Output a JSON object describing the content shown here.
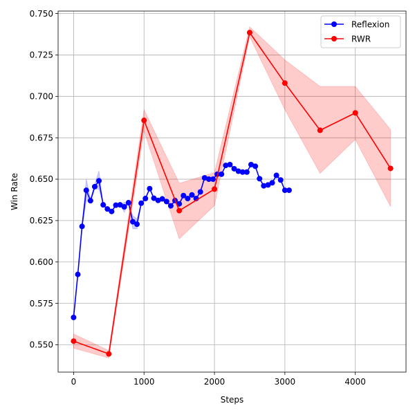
{
  "chart_data": {
    "type": "line",
    "title": "",
    "xlabel": "Steps",
    "ylabel": "Win Rate",
    "xlim": [
      -220,
      4720
    ],
    "ylim": [
      0.5335,
      0.7515
    ],
    "xticks": [
      0,
      1000,
      2000,
      3000,
      4000
    ],
    "xtick_labels": [
      "0",
      "1000",
      "2000",
      "3000",
      "4000"
    ],
    "yticks": [
      0.55,
      0.575,
      0.6,
      0.625,
      0.65,
      0.675,
      0.7,
      0.725,
      0.75
    ],
    "ytick_labels": [
      "0.550",
      "0.575",
      "0.600",
      "0.625",
      "0.650",
      "0.675",
      "0.700",
      "0.725",
      "0.750"
    ],
    "grid": true,
    "legend_position": "top-right",
    "series": [
      {
        "name": "Reflexion",
        "color": "#0000ff",
        "x": [
          0,
          60,
          120,
          180,
          240,
          300,
          360,
          420,
          480,
          540,
          600,
          660,
          720,
          780,
          840,
          900,
          960,
          1020,
          1080,
          1140,
          1200,
          1260,
          1320,
          1380,
          1440,
          1500,
          1560,
          1620,
          1680,
          1740,
          1800,
          1860,
          1920,
          1980,
          2040,
          2100,
          2160,
          2220,
          2280,
          2340,
          2400,
          2460,
          2520,
          2580,
          2640,
          2700,
          2760,
          2820,
          2880,
          2940,
          3000,
          3060
        ],
        "values": [
          0.5665,
          0.5925,
          0.6215,
          0.6433,
          0.637,
          0.6455,
          0.649,
          0.6345,
          0.632,
          0.6305,
          0.6343,
          0.6345,
          0.6333,
          0.6358,
          0.6243,
          0.6228,
          0.6355,
          0.6383,
          0.6443,
          0.6385,
          0.6372,
          0.6381,
          0.6365,
          0.6339,
          0.6371,
          0.6351,
          0.6401,
          0.6383,
          0.6405,
          0.6383,
          0.6423,
          0.6508,
          0.65,
          0.65,
          0.653,
          0.653,
          0.6583,
          0.6588,
          0.6563,
          0.6548,
          0.6543,
          0.6543,
          0.6588,
          0.6578,
          0.6503,
          0.646,
          0.6465,
          0.6478,
          0.6523,
          0.6495,
          0.6433,
          0.6433
        ],
        "lower": [
          0.5665,
          0.5925,
          0.62,
          0.637,
          0.636,
          0.644,
          0.644,
          0.6345,
          0.632,
          0.6305,
          0.6343,
          0.6345,
          0.63,
          0.6358,
          0.62,
          0.62,
          0.6355,
          0.6383,
          0.6443,
          0.6385,
          0.6372,
          0.6381,
          0.6365,
          0.6339,
          0.6371,
          0.6351,
          0.6401,
          0.6383,
          0.6405,
          0.6383,
          0.6423,
          0.6508,
          0.65,
          0.65,
          0.653,
          0.653,
          0.6583,
          0.6588,
          0.6563,
          0.6548,
          0.6543,
          0.6543,
          0.6588,
          0.6578,
          0.6503,
          0.646,
          0.6465,
          0.6478,
          0.6523,
          0.6495,
          0.6433,
          0.6433
        ],
        "upper": [
          0.5665,
          0.5925,
          0.623,
          0.65,
          0.638,
          0.647,
          0.655,
          0.6345,
          0.632,
          0.6305,
          0.6343,
          0.6345,
          0.636,
          0.6358,
          0.628,
          0.626,
          0.6355,
          0.6383,
          0.6443,
          0.6385,
          0.6372,
          0.6381,
          0.6365,
          0.6339,
          0.6371,
          0.6351,
          0.6401,
          0.6383,
          0.6405,
          0.6383,
          0.6423,
          0.6508,
          0.65,
          0.65,
          0.653,
          0.653,
          0.6583,
          0.6588,
          0.6563,
          0.6548,
          0.6543,
          0.6543,
          0.6588,
          0.6578,
          0.6503,
          0.646,
          0.6465,
          0.6478,
          0.6523,
          0.6495,
          0.6433,
          0.6433
        ]
      },
      {
        "name": "RWR",
        "color": "#ff0000",
        "x": [
          0,
          500,
          1000,
          1500,
          2000,
          2500,
          3000,
          3500,
          4000,
          4500
        ],
        "values": [
          0.5522,
          0.5445,
          0.6855,
          0.631,
          0.644,
          0.7385,
          0.708,
          0.6795,
          0.69,
          0.6565
        ],
        "lower": [
          0.548,
          0.542,
          0.679,
          0.614,
          0.634,
          0.736,
          0.692,
          0.6535,
          0.674,
          0.6335
        ],
        "upper": [
          0.5565,
          0.5465,
          0.692,
          0.6475,
          0.654,
          0.742,
          0.722,
          0.706,
          0.706,
          0.68
        ]
      }
    ]
  }
}
